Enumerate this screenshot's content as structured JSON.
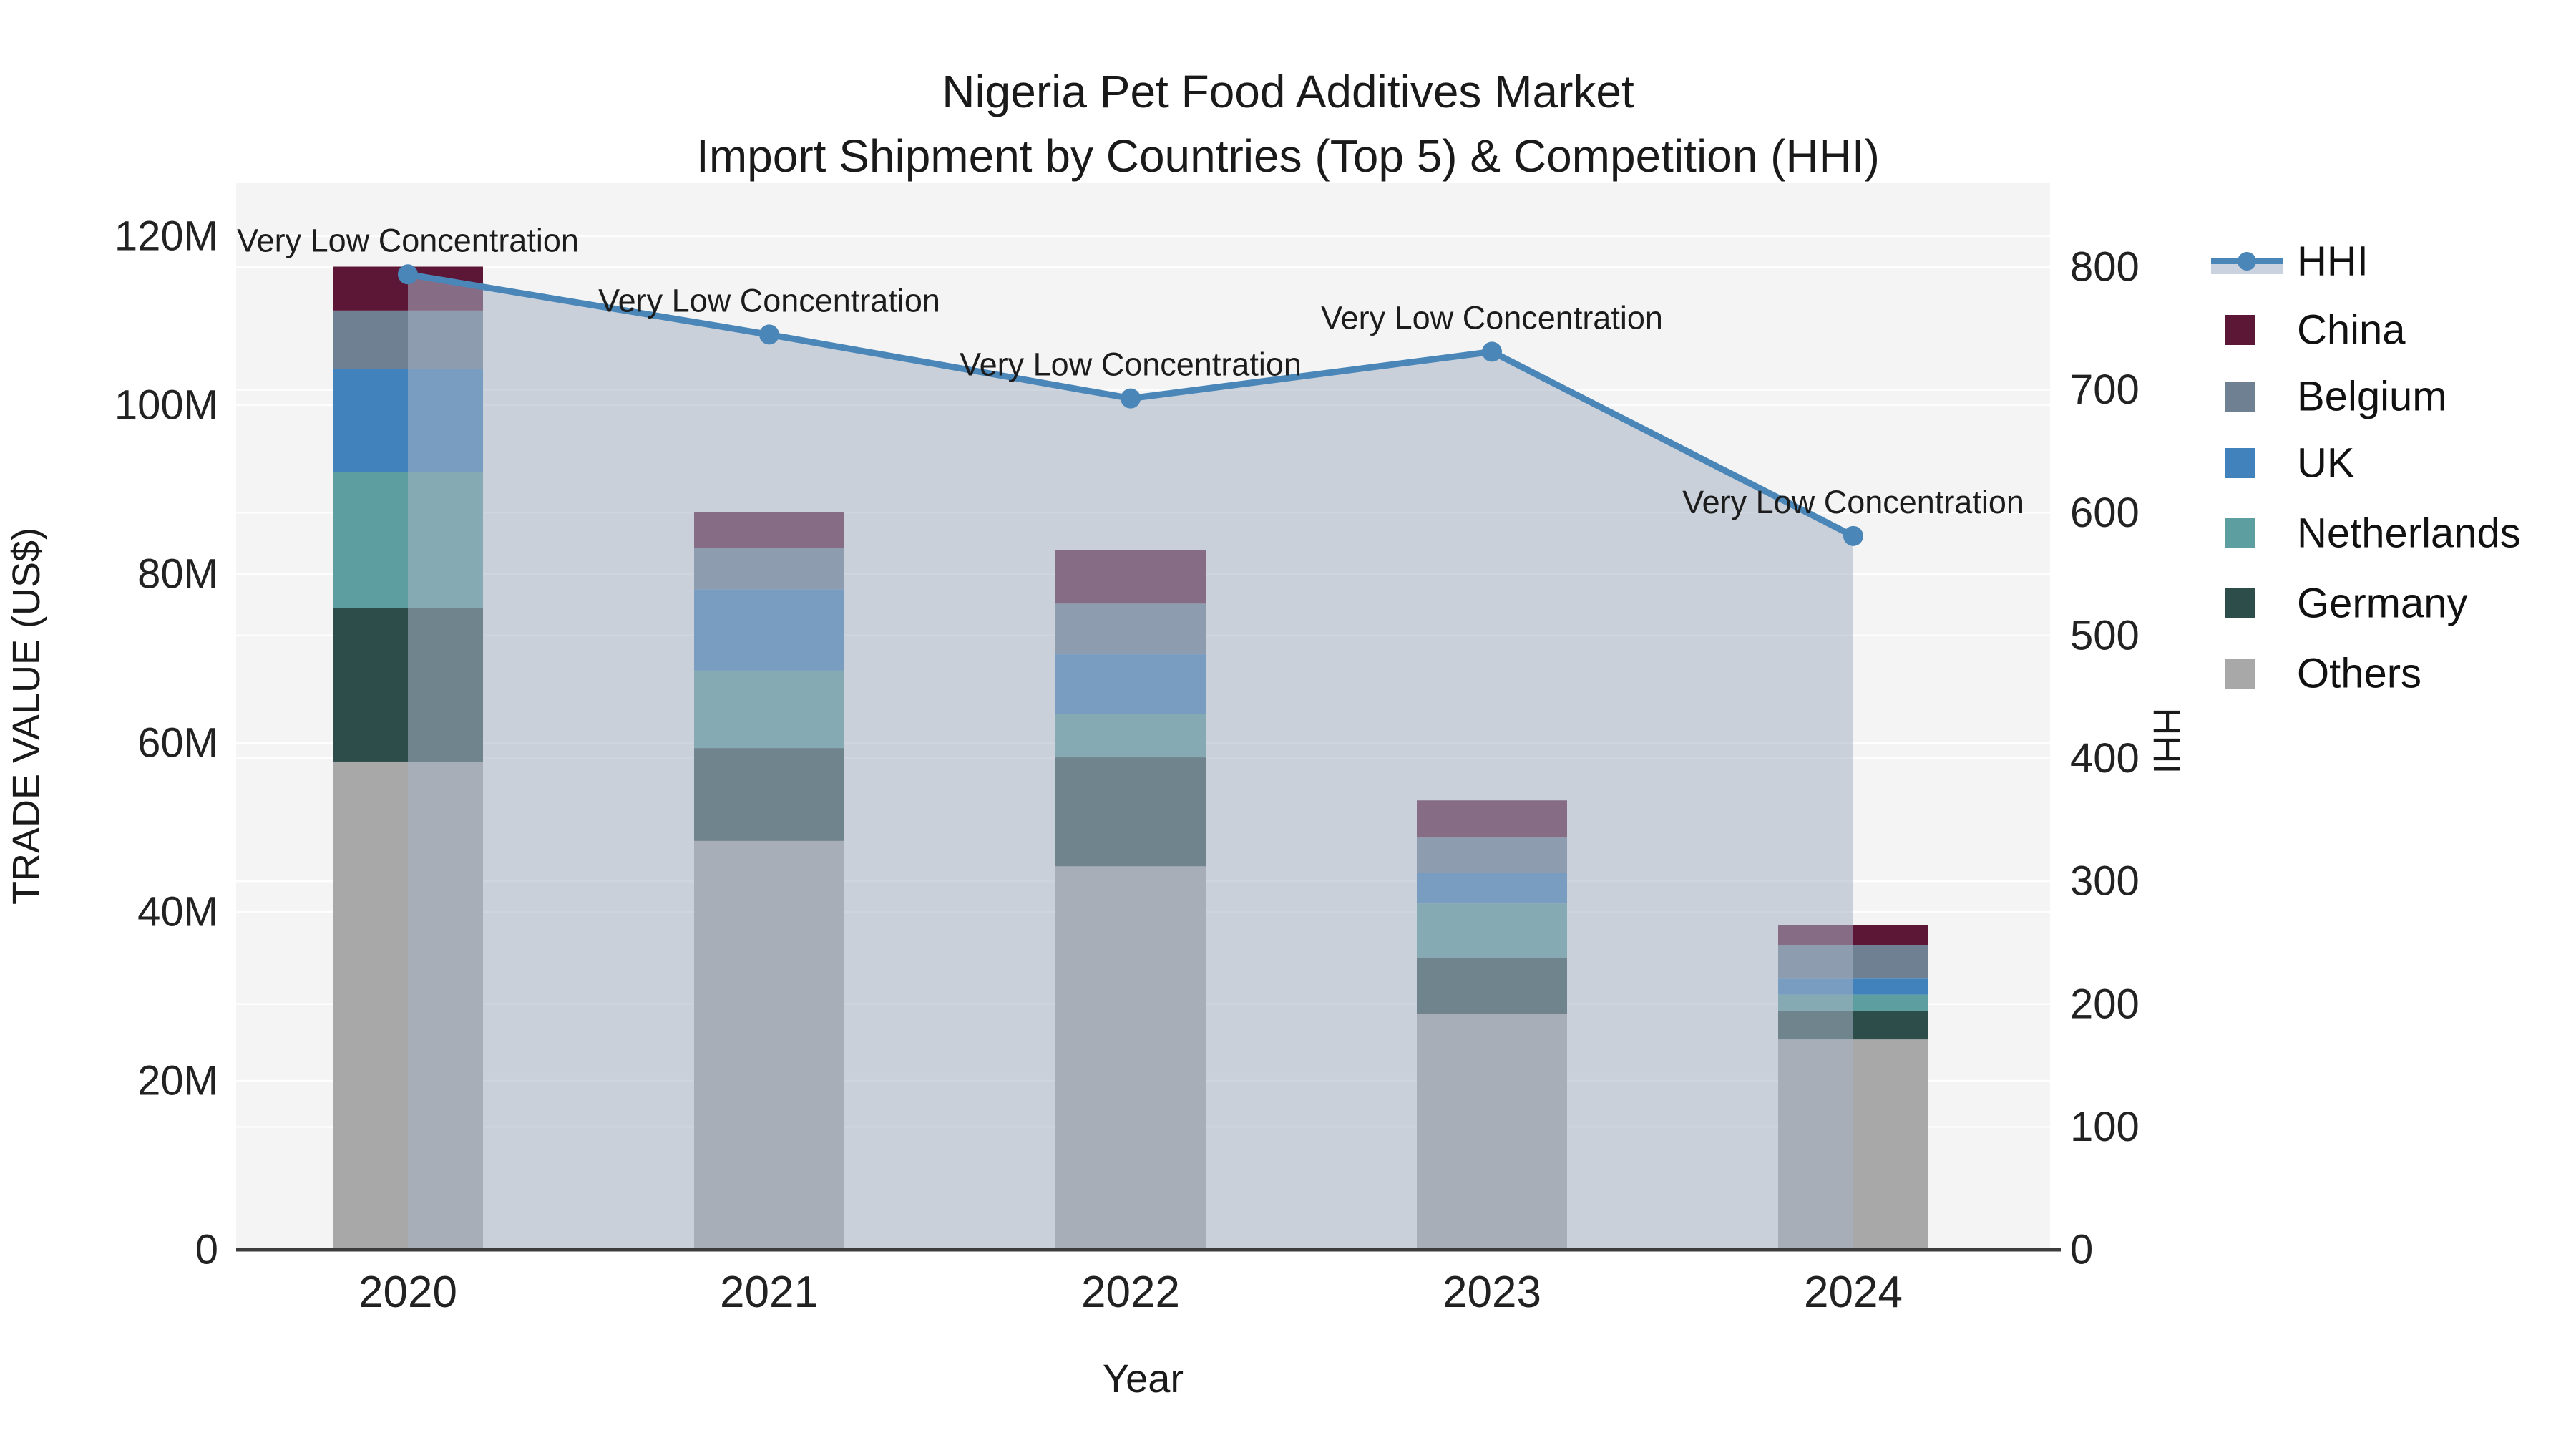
{
  "chart_data": {
    "type": "bar+line",
    "title_line1": "Nigeria Pet Food Additives Market",
    "title_line2": "Import Shipment by Countries (Top 5) & Competition (HHI)",
    "categories": [
      "2020",
      "2021",
      "2022",
      "2023",
      "2024"
    ],
    "bar_value_unit": "millions US$",
    "series": [
      {
        "name": "China",
        "color": "#5d1736",
        "values": [
          5.2,
          4.2,
          6.3,
          4.4,
          2.3
        ]
      },
      {
        "name": "Belgium",
        "color": "#6e8092",
        "values": [
          6.9,
          4.9,
          6.0,
          4.2,
          4.0
        ]
      },
      {
        "name": "UK",
        "color": "#4282bc",
        "values": [
          12.2,
          9.6,
          7.1,
          3.6,
          1.9
        ]
      },
      {
        "name": "Netherlands",
        "color": "#5d9fa0",
        "values": [
          16.1,
          9.2,
          5.1,
          6.4,
          1.9
        ]
      },
      {
        "name": "Germany",
        "color": "#2d4d4b",
        "values": [
          18.2,
          11.0,
          12.9,
          6.7,
          3.4
        ]
      },
      {
        "name": "Others",
        "color": "#a8a8a8",
        "values": [
          57.8,
          48.4,
          45.4,
          27.9,
          24.9
        ]
      }
    ],
    "hhi": {
      "name": "HHI",
      "color": "#4a86b8",
      "fill_color": "rgba(167,178,197,0.55)",
      "values": [
        794,
        745,
        693,
        731,
        581
      ],
      "annotations": [
        "Very Low Concentration",
        "Very Low Concentration",
        "Very Low Concentration",
        "Very Low Concentration",
        "Very Low Concentration"
      ]
    },
    "x_axis": {
      "title": "Year"
    },
    "left_axis": {
      "title": "TRADE VALUE (US$)",
      "max": 120,
      "tick_values": [
        0,
        20,
        40,
        60,
        80,
        100,
        120
      ],
      "tick_labels": [
        "0",
        "20M",
        "40M",
        "60M",
        "80M",
        "100M",
        "120M"
      ]
    },
    "right_axis": {
      "title": "HHI",
      "max": 800,
      "tick_values": [
        0,
        100,
        200,
        300,
        400,
        500,
        600,
        700,
        800
      ],
      "tick_labels": [
        "0",
        "100",
        "200",
        "300",
        "400",
        "500",
        "600",
        "700",
        "800"
      ]
    },
    "legend_order": [
      "HHI",
      "China",
      "Belgium",
      "UK",
      "Netherlands",
      "Germany",
      "Others"
    ],
    "plot_bg": "#f4f4f4",
    "grid_color": "rgba(255,255,255,0.85)",
    "axis_line_color": "#3c3c3c",
    "text_color": "#1a1a1a",
    "tick_color": "#222222"
  }
}
